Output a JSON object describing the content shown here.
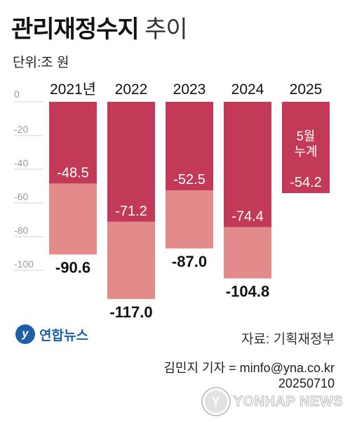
{
  "title": {
    "bold": "관리재정수지",
    "light": "추이"
  },
  "unit_label": "단위:조 원",
  "source": "자료: 기획재정부",
  "credit_line1": "김민지 기자 = minfo@yna.co.kr",
  "credit_line2": "20250710",
  "logo": {
    "mark": "y",
    "name": "연합뉴스"
  },
  "watermark": {
    "mark": "Y",
    "text": "YONHAP NEWS"
  },
  "colors": {
    "dark": "#c33a58",
    "light": "#e38a8a",
    "axis": "#9a9a9a"
  },
  "chart_data": {
    "type": "bar",
    "ylim": [
      -120,
      0
    ],
    "y_ticks": [
      0,
      -20,
      -40,
      -60,
      -80,
      -100
    ],
    "y_tick_labels": [
      "0",
      "-20",
      "-40",
      "-60",
      "-80",
      "-100"
    ],
    "categories": [
      "2021년",
      "2022",
      "2023",
      "2024",
      "2025"
    ],
    "series": [
      {
        "values": [
          -48.5,
          -71.2,
          -52.5,
          -74.4,
          -54.2
        ],
        "labels": [
          "-48.5",
          "-71.2",
          "-52.5",
          "-74.4",
          "-54.2"
        ]
      },
      {
        "values": [
          -90.6,
          -117.0,
          -87.0,
          -104.8,
          null
        ],
        "labels": [
          "-90.6",
          "-117.0",
          "-87.0",
          "-104.8",
          ""
        ]
      }
    ],
    "annotations": [
      {
        "category": "2025",
        "lines": [
          "5월",
          "누계"
        ]
      }
    ]
  }
}
